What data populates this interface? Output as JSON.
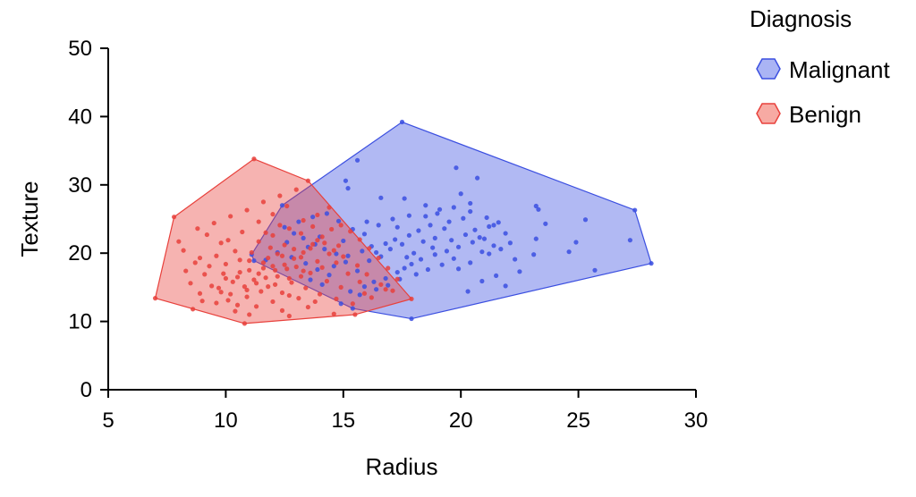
{
  "chart_data": {
    "type": "scatter",
    "title": "",
    "xlabel": "Radius",
    "ylabel": "Texture",
    "xlim": [
      5,
      30
    ],
    "ylim": [
      0,
      50
    ],
    "x_ticks": [
      5,
      10,
      15,
      20,
      25,
      30
    ],
    "y_ticks": [
      0,
      10,
      20,
      30,
      40,
      50
    ],
    "grid": false,
    "legend": {
      "title": "Diagnosis",
      "position": "top-right"
    },
    "series": [
      {
        "name": "Malignant",
        "color": "#3b4fe0",
        "fill": "#aab4f4",
        "hull": [
          [
            11.1,
            19.8
          ],
          [
            12.4,
            27.0
          ],
          [
            17.5,
            39.2
          ],
          [
            27.4,
            26.3
          ],
          [
            28.1,
            18.5
          ],
          [
            17.9,
            10.4
          ],
          [
            15.4,
            11.9
          ],
          [
            11.2,
            18.9
          ]
        ],
        "points": [
          [
            17.5,
            39.2
          ],
          [
            15.6,
            33.6
          ],
          [
            19.8,
            32.5
          ],
          [
            20.7,
            31.0
          ],
          [
            15.1,
            30.6
          ],
          [
            15.2,
            29.5
          ],
          [
            16.6,
            28.1
          ],
          [
            17.6,
            28.0
          ],
          [
            20.0,
            28.7
          ],
          [
            18.5,
            27.0
          ],
          [
            19.1,
            26.4
          ],
          [
            19.0,
            25.8
          ],
          [
            20.4,
            26.1
          ],
          [
            21.1,
            25.2
          ],
          [
            21.6,
            24.5
          ],
          [
            21.2,
            23.9
          ],
          [
            21.9,
            22.9
          ],
          [
            22.1,
            21.5
          ],
          [
            21.4,
            21.1
          ],
          [
            20.8,
            22.3
          ],
          [
            20.5,
            21.6
          ],
          [
            19.9,
            20.9
          ],
          [
            19.4,
            20.3
          ],
          [
            18.9,
            19.8
          ],
          [
            18.3,
            19.1
          ],
          [
            17.9,
            18.4
          ],
          [
            17.6,
            17.8
          ],
          [
            17.3,
            17.2
          ],
          [
            16.8,
            16.3
          ],
          [
            16.3,
            15.8
          ],
          [
            15.9,
            15.1
          ],
          [
            15.3,
            14.4
          ],
          [
            15.4,
            11.9
          ],
          [
            17.9,
            10.4
          ],
          [
            20.3,
            14.4
          ],
          [
            20.9,
            15.9
          ],
          [
            21.5,
            16.7
          ],
          [
            21.9,
            15.2
          ],
          [
            22.5,
            17.3
          ],
          [
            23.1,
            19.8
          ],
          [
            23.2,
            26.9
          ],
          [
            23.3,
            26.4
          ],
          [
            23.6,
            24.3
          ],
          [
            23.2,
            22.1
          ],
          [
            24.6,
            20.2
          ],
          [
            24.9,
            21.6
          ],
          [
            25.3,
            24.9
          ],
          [
            25.7,
            17.5
          ],
          [
            27.4,
            26.3
          ],
          [
            28.1,
            18.5
          ],
          [
            27.2,
            21.9
          ],
          [
            19.3,
            23.6
          ],
          [
            18.7,
            24.1
          ],
          [
            18.2,
            23.3
          ],
          [
            17.8,
            22.6
          ],
          [
            17.2,
            22.0
          ],
          [
            16.8,
            21.4
          ],
          [
            16.2,
            21.0
          ],
          [
            15.8,
            20.3
          ],
          [
            15.2,
            19.6
          ],
          [
            14.7,
            19.9
          ],
          [
            14.2,
            20.6
          ],
          [
            13.8,
            21.3
          ],
          [
            13.3,
            22.2
          ],
          [
            12.9,
            22.9
          ],
          [
            12.5,
            23.8
          ],
          [
            12.4,
            27.0
          ],
          [
            13.1,
            24.6
          ],
          [
            13.7,
            25.3
          ],
          [
            14.3,
            25.8
          ],
          [
            14.8,
            24.7
          ],
          [
            15.4,
            23.5
          ],
          [
            15.9,
            22.8
          ],
          [
            16.5,
            24.1
          ],
          [
            17.1,
            25.0
          ],
          [
            17.8,
            25.5
          ],
          [
            18.4,
            21.7
          ],
          [
            18.9,
            22.2
          ],
          [
            19.6,
            21.9
          ],
          [
            20.2,
            22.7
          ],
          [
            19.5,
            24.6
          ],
          [
            20.1,
            25.1
          ],
          [
            20.6,
            23.4
          ],
          [
            21.0,
            22.1
          ],
          [
            19.2,
            18.3
          ],
          [
            18.6,
            17.6
          ],
          [
            18.1,
            16.9
          ],
          [
            17.4,
            16.2
          ],
          [
            16.9,
            15.3
          ],
          [
            16.4,
            14.7
          ],
          [
            15.7,
            13.9
          ],
          [
            14.9,
            12.6
          ],
          [
            14.4,
            16.8
          ],
          [
            13.9,
            17.6
          ],
          [
            13.4,
            18.5
          ],
          [
            12.8,
            19.4
          ],
          [
            12.2,
            20.1
          ],
          [
            11.7,
            19.0
          ],
          [
            11.2,
            18.9
          ],
          [
            11.1,
            19.8
          ],
          [
            13.6,
            16.1
          ],
          [
            14.1,
            15.4
          ],
          [
            14.6,
            18.1
          ],
          [
            15.1,
            18.7
          ],
          [
            15.6,
            17.4
          ],
          [
            16.1,
            18.9
          ],
          [
            16.6,
            19.5
          ],
          [
            17.0,
            20.6
          ],
          [
            17.5,
            21.3
          ],
          [
            18.0,
            20.0
          ],
          [
            18.8,
            20.8
          ],
          [
            19.7,
            19.2
          ],
          [
            20.4,
            18.6
          ],
          [
            21.2,
            19.9
          ],
          [
            21.7,
            20.6
          ],
          [
            22.3,
            19.1
          ],
          [
            20.9,
            20.2
          ],
          [
            19.9,
            17.7
          ],
          [
            17.7,
            19.4
          ],
          [
            16.4,
            20.1
          ],
          [
            14.0,
            22.4
          ],
          [
            13.5,
            20.9
          ],
          [
            12.6,
            21.6
          ],
          [
            15.0,
            21.8
          ],
          [
            16.0,
            24.6
          ],
          [
            17.3,
            23.8
          ],
          [
            18.5,
            25.4
          ],
          [
            19.7,
            26.7
          ],
          [
            20.4,
            27.3
          ],
          [
            21.4,
            24.1
          ]
        ]
      },
      {
        "name": "Benign",
        "color": "#e8413c",
        "fill": "#f7aaa3",
        "hull": [
          [
            7.8,
            25.3
          ],
          [
            11.2,
            33.8
          ],
          [
            13.5,
            30.6
          ],
          [
            17.9,
            13.3
          ],
          [
            15.5,
            11.0
          ],
          [
            10.8,
            9.7
          ],
          [
            7.0,
            13.4
          ]
        ],
        "points": [
          [
            11.2,
            33.8
          ],
          [
            13.5,
            30.6
          ],
          [
            7.8,
            25.3
          ],
          [
            7.0,
            13.4
          ],
          [
            8.6,
            11.8
          ],
          [
            10.8,
            9.7
          ],
          [
            12.7,
            10.8
          ],
          [
            14.6,
            11.1
          ],
          [
            15.5,
            11.0
          ],
          [
            17.9,
            13.3
          ],
          [
            8.2,
            20.4
          ],
          [
            8.7,
            18.6
          ],
          [
            9.1,
            16.9
          ],
          [
            9.4,
            15.2
          ],
          [
            9.8,
            14.3
          ],
          [
            10.1,
            13.1
          ],
          [
            10.5,
            12.4
          ],
          [
            10.9,
            14.6
          ],
          [
            11.3,
            15.6
          ],
          [
            11.7,
            16.4
          ],
          [
            12.1,
            17.5
          ],
          [
            12.5,
            18.3
          ],
          [
            12.9,
            19.2
          ],
          [
            13.3,
            20.1
          ],
          [
            13.7,
            21.3
          ],
          [
            14.1,
            22.4
          ],
          [
            14.5,
            23.5
          ],
          [
            14.9,
            24.1
          ],
          [
            15.3,
            23.2
          ],
          [
            15.7,
            22.0
          ],
          [
            16.1,
            20.7
          ],
          [
            16.5,
            19.3
          ],
          [
            16.9,
            17.8
          ],
          [
            17.3,
            16.2
          ],
          [
            16.8,
            14.7
          ],
          [
            16.2,
            13.5
          ],
          [
            15.4,
            12.6
          ],
          [
            14.7,
            13.3
          ],
          [
            14.0,
            14.0
          ],
          [
            13.4,
            14.9
          ],
          [
            12.8,
            15.7
          ],
          [
            12.2,
            16.6
          ],
          [
            11.6,
            17.8
          ],
          [
            11.0,
            18.9
          ],
          [
            10.4,
            20.3
          ],
          [
            9.8,
            21.5
          ],
          [
            9.2,
            22.7
          ],
          [
            8.8,
            23.6
          ],
          [
            9.5,
            24.4
          ],
          [
            10.2,
            25.4
          ],
          [
            10.9,
            26.3
          ],
          [
            11.6,
            27.5
          ],
          [
            12.3,
            28.4
          ],
          [
            13.0,
            29.3
          ],
          [
            12.6,
            26.9
          ],
          [
            12.0,
            25.7
          ],
          [
            11.4,
            24.6
          ],
          [
            10.7,
            23.1
          ],
          [
            10.1,
            21.9
          ],
          [
            9.6,
            19.6
          ],
          [
            10.0,
            18.4
          ],
          [
            10.6,
            17.2
          ],
          [
            11.2,
            16.1
          ],
          [
            11.8,
            15.1
          ],
          [
            12.4,
            14.2
          ],
          [
            13.1,
            13.4
          ],
          [
            13.8,
            12.9
          ],
          [
            14.3,
            15.9
          ],
          [
            13.6,
            17.1
          ],
          [
            13.0,
            18.0
          ],
          [
            12.4,
            19.6
          ],
          [
            11.9,
            20.8
          ],
          [
            11.4,
            21.7
          ],
          [
            12.0,
            22.6
          ],
          [
            12.7,
            23.6
          ],
          [
            13.3,
            24.8
          ],
          [
            13.9,
            25.6
          ],
          [
            14.4,
            26.7
          ],
          [
            14.8,
            21.1
          ],
          [
            14.4,
            19.9
          ],
          [
            13.9,
            18.8
          ],
          [
            13.3,
            17.4
          ],
          [
            12.7,
            16.3
          ],
          [
            12.1,
            15.4
          ],
          [
            11.5,
            14.4
          ],
          [
            10.9,
            13.6
          ],
          [
            10.3,
            15.8
          ],
          [
            9.9,
            17.0
          ],
          [
            9.3,
            18.1
          ],
          [
            8.9,
            19.3
          ],
          [
            8.5,
            15.6
          ],
          [
            8.9,
            14.1
          ],
          [
            9.6,
            12.7
          ],
          [
            10.4,
            11.5
          ],
          [
            11.3,
            12.2
          ],
          [
            12.0,
            12.9
          ],
          [
            12.7,
            13.8
          ],
          [
            13.2,
            16.6
          ],
          [
            14.1,
            17.9
          ],
          [
            14.7,
            18.6
          ],
          [
            15.2,
            17.0
          ],
          [
            15.7,
            15.8
          ],
          [
            16.0,
            16.9
          ],
          [
            15.6,
            18.2
          ],
          [
            15.0,
            19.5
          ],
          [
            14.6,
            20.4
          ],
          [
            13.9,
            21.9
          ],
          [
            13.2,
            22.9
          ],
          [
            12.5,
            21.2
          ],
          [
            11.8,
            19.3
          ],
          [
            11.1,
            20.1
          ],
          [
            10.6,
            19.0
          ],
          [
            10.0,
            16.3
          ],
          [
            9.7,
            14.9
          ],
          [
            10.2,
            14.0
          ],
          [
            10.8,
            15.1
          ],
          [
            11.4,
            17.0
          ],
          [
            12.0,
            18.1
          ],
          [
            12.6,
            17.7
          ],
          [
            13.2,
            19.4
          ],
          [
            13.6,
            20.7
          ],
          [
            14.2,
            21.5
          ],
          [
            12.9,
            20.6
          ],
          [
            12.2,
            19.9
          ],
          [
            11.6,
            18.6
          ],
          [
            11.0,
            17.5
          ],
          [
            10.5,
            16.5
          ],
          [
            12.3,
            24.1
          ],
          [
            11.7,
            23.0
          ],
          [
            13.7,
            23.9
          ],
          [
            14.9,
            15.0
          ],
          [
            15.9,
            14.1
          ],
          [
            16.6,
            15.4
          ],
          [
            17.1,
            14.5
          ],
          [
            13.5,
            12.1
          ],
          [
            12.4,
            11.6
          ],
          [
            11.0,
            11.0
          ],
          [
            9.0,
            13.0
          ],
          [
            8.3,
            17.4
          ],
          [
            8.0,
            21.7
          ]
        ]
      }
    ]
  },
  "colors": {
    "axis": "#000000",
    "background": "#ffffff"
  }
}
